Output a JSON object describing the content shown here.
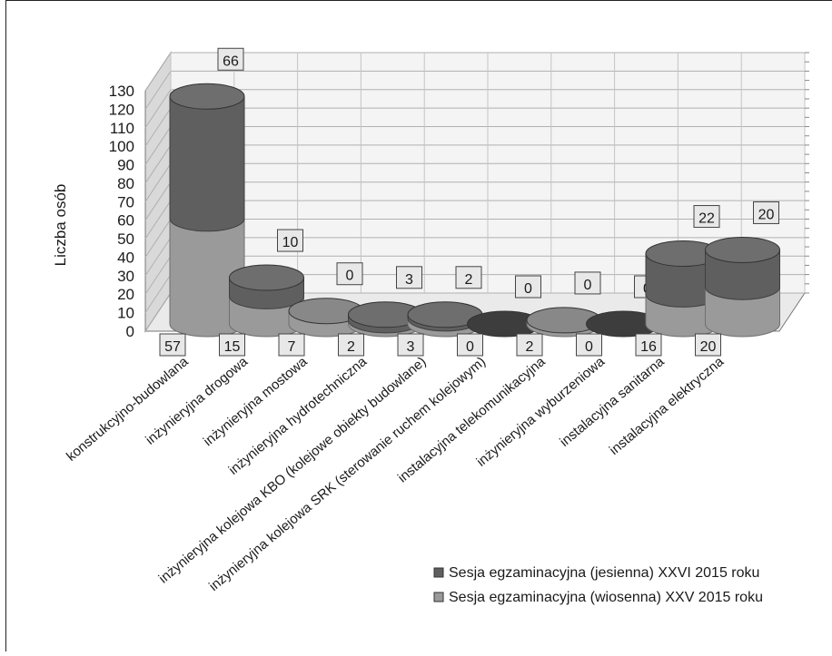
{
  "chart_data": {
    "type": "bar",
    "title": "",
    "ylabel": "Liczba osób",
    "xlabel": "",
    "ylim": [
      0,
      130
    ],
    "yticks": [
      0,
      10,
      20,
      30,
      40,
      50,
      60,
      70,
      80,
      90,
      100,
      110,
      120,
      130
    ],
    "grid": true,
    "legend_position": "bottom-right",
    "categories": [
      "konstrukcyjno-budowlana",
      "inżynieryjna drogowa",
      "inżynieryjna mostowa",
      "inżynieryjna hydrotechniczna",
      "inżynieryjna kolejowa KBO (kolejowe obiekty budowlane)",
      "inżynieryjna kolejowa SRK (sterowanie ruchem kolejowym)",
      "instalacyjna telekomunikacyjna",
      "inżynieryjna wyburzeniowa",
      "instalacyjna sanitarna",
      "instalacyjna elektryczna"
    ],
    "series": [
      {
        "name": "Sesja egzaminacyjna (wiosenna) XXV 2015 roku",
        "color": "#9a9a9a",
        "values": [
          57,
          15,
          7,
          2,
          3,
          0,
          2,
          0,
          16,
          20
        ]
      },
      {
        "name": "Sesja egzaminacyjna (jesienna) XXVI 2015 roku",
        "color": "#5f5f5f",
        "values": [
          66,
          10,
          0,
          3,
          2,
          0,
          0,
          0,
          22,
          20
        ]
      }
    ]
  }
}
